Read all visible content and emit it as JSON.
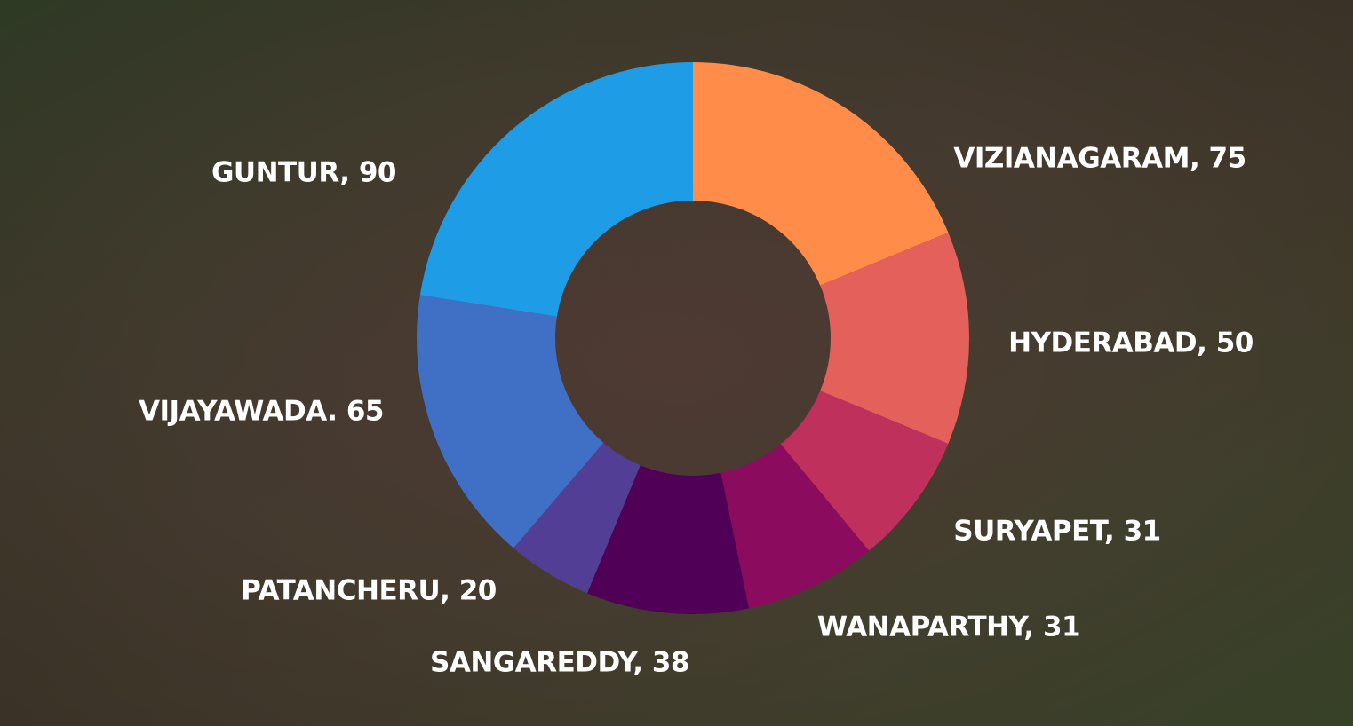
{
  "chart_data": {
    "type": "donut",
    "values": [
      75,
      50,
      31,
      31,
      38,
      20,
      65,
      90
    ],
    "value_labels": [
      "VIZIANAGARAM, 75",
      "HYDERABAD, 50",
      "SURYAPET, 31",
      "WANAPARTHY, 31",
      "SANGAREDDY, 38",
      "PATANCHERU, 20",
      "VIJAYAWADA. 65",
      "GUNTUR, 90"
    ],
    "colors": [
      "#ff8c48",
      "#e4605a",
      "#c0305c",
      "#8b0c5f",
      "#510057",
      "#523f95",
      "#3f70c6",
      "#1e9ce6"
    ]
  }
}
